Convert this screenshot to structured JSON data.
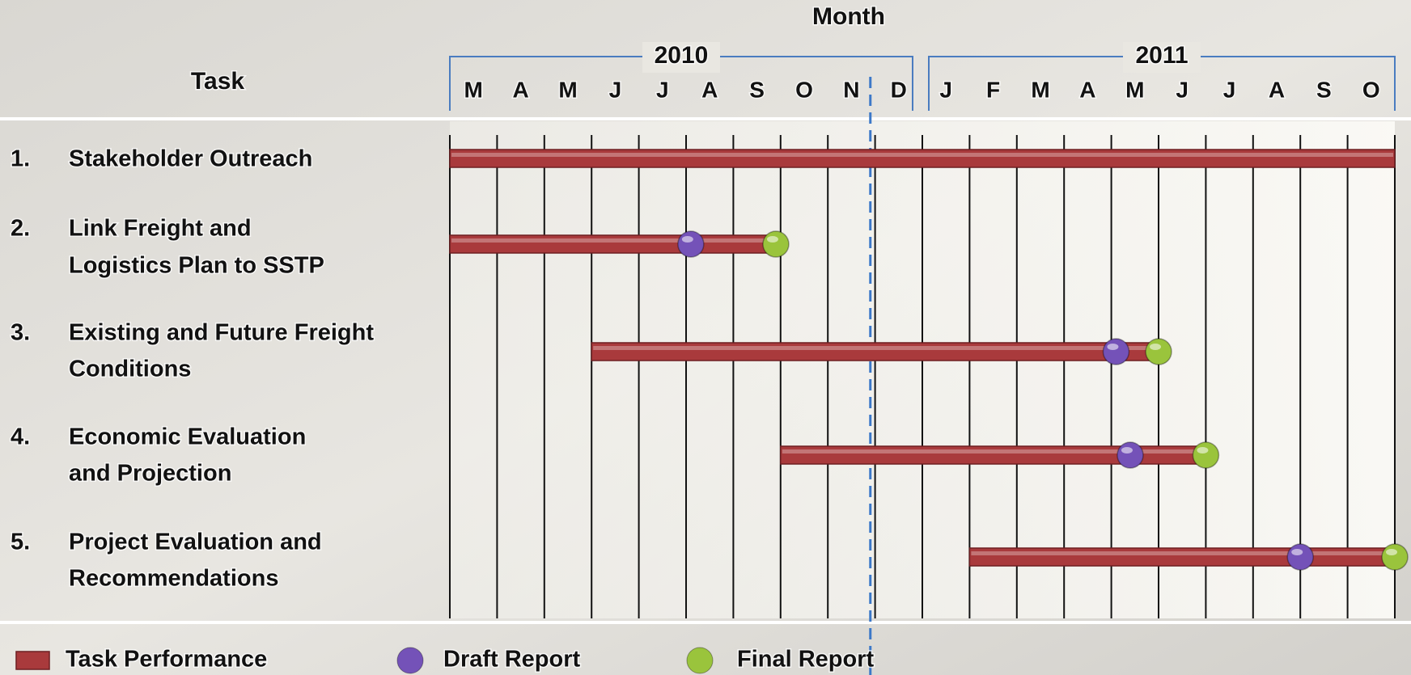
{
  "chart_data": {
    "type": "gantt",
    "x_label": "Month",
    "task_header": "Task",
    "xlim": [
      0,
      20
    ],
    "years": [
      {
        "name": "2010",
        "months": 10
      },
      {
        "name": "2011",
        "months": 10
      }
    ],
    "months": [
      "M",
      "A",
      "M",
      "J",
      "J",
      "A",
      "S",
      "O",
      "N",
      "D",
      "J",
      "F",
      "M",
      "A",
      "M",
      "J",
      "J",
      "A",
      "S",
      "O"
    ],
    "today": 8.9,
    "series": [
      {
        "name": "Task Performance",
        "color": "#a93a3c"
      },
      {
        "name": "Draft Report",
        "color": "#7452b8"
      },
      {
        "name": "Final Report",
        "color": "#9ac43c"
      }
    ],
    "tasks": [
      {
        "number": "1.",
        "label": [
          "Stakeholder Outreach"
        ],
        "start": 0,
        "end": 20
      },
      {
        "number": "2.",
        "label": [
          "Link Freight and",
          "Logistics Plan to SSTP"
        ],
        "start": 0,
        "end": 7,
        "draft": 5.1,
        "final": 6.9
      },
      {
        "number": "3.",
        "label": [
          "Existing and Future Freight",
          "Conditions"
        ],
        "start": 3,
        "end": 15,
        "draft": 14.1,
        "final": 15
      },
      {
        "number": "4.",
        "label": [
          "Economic Evaluation",
          "and Projection"
        ],
        "start": 7,
        "end": 16,
        "draft": 14.4,
        "final": 16
      },
      {
        "number": "5.",
        "label": [
          "Project Evaluation and",
          "Recommendations"
        ],
        "start": 11,
        "end": 20,
        "draft": 18,
        "final": 20
      }
    ]
  }
}
